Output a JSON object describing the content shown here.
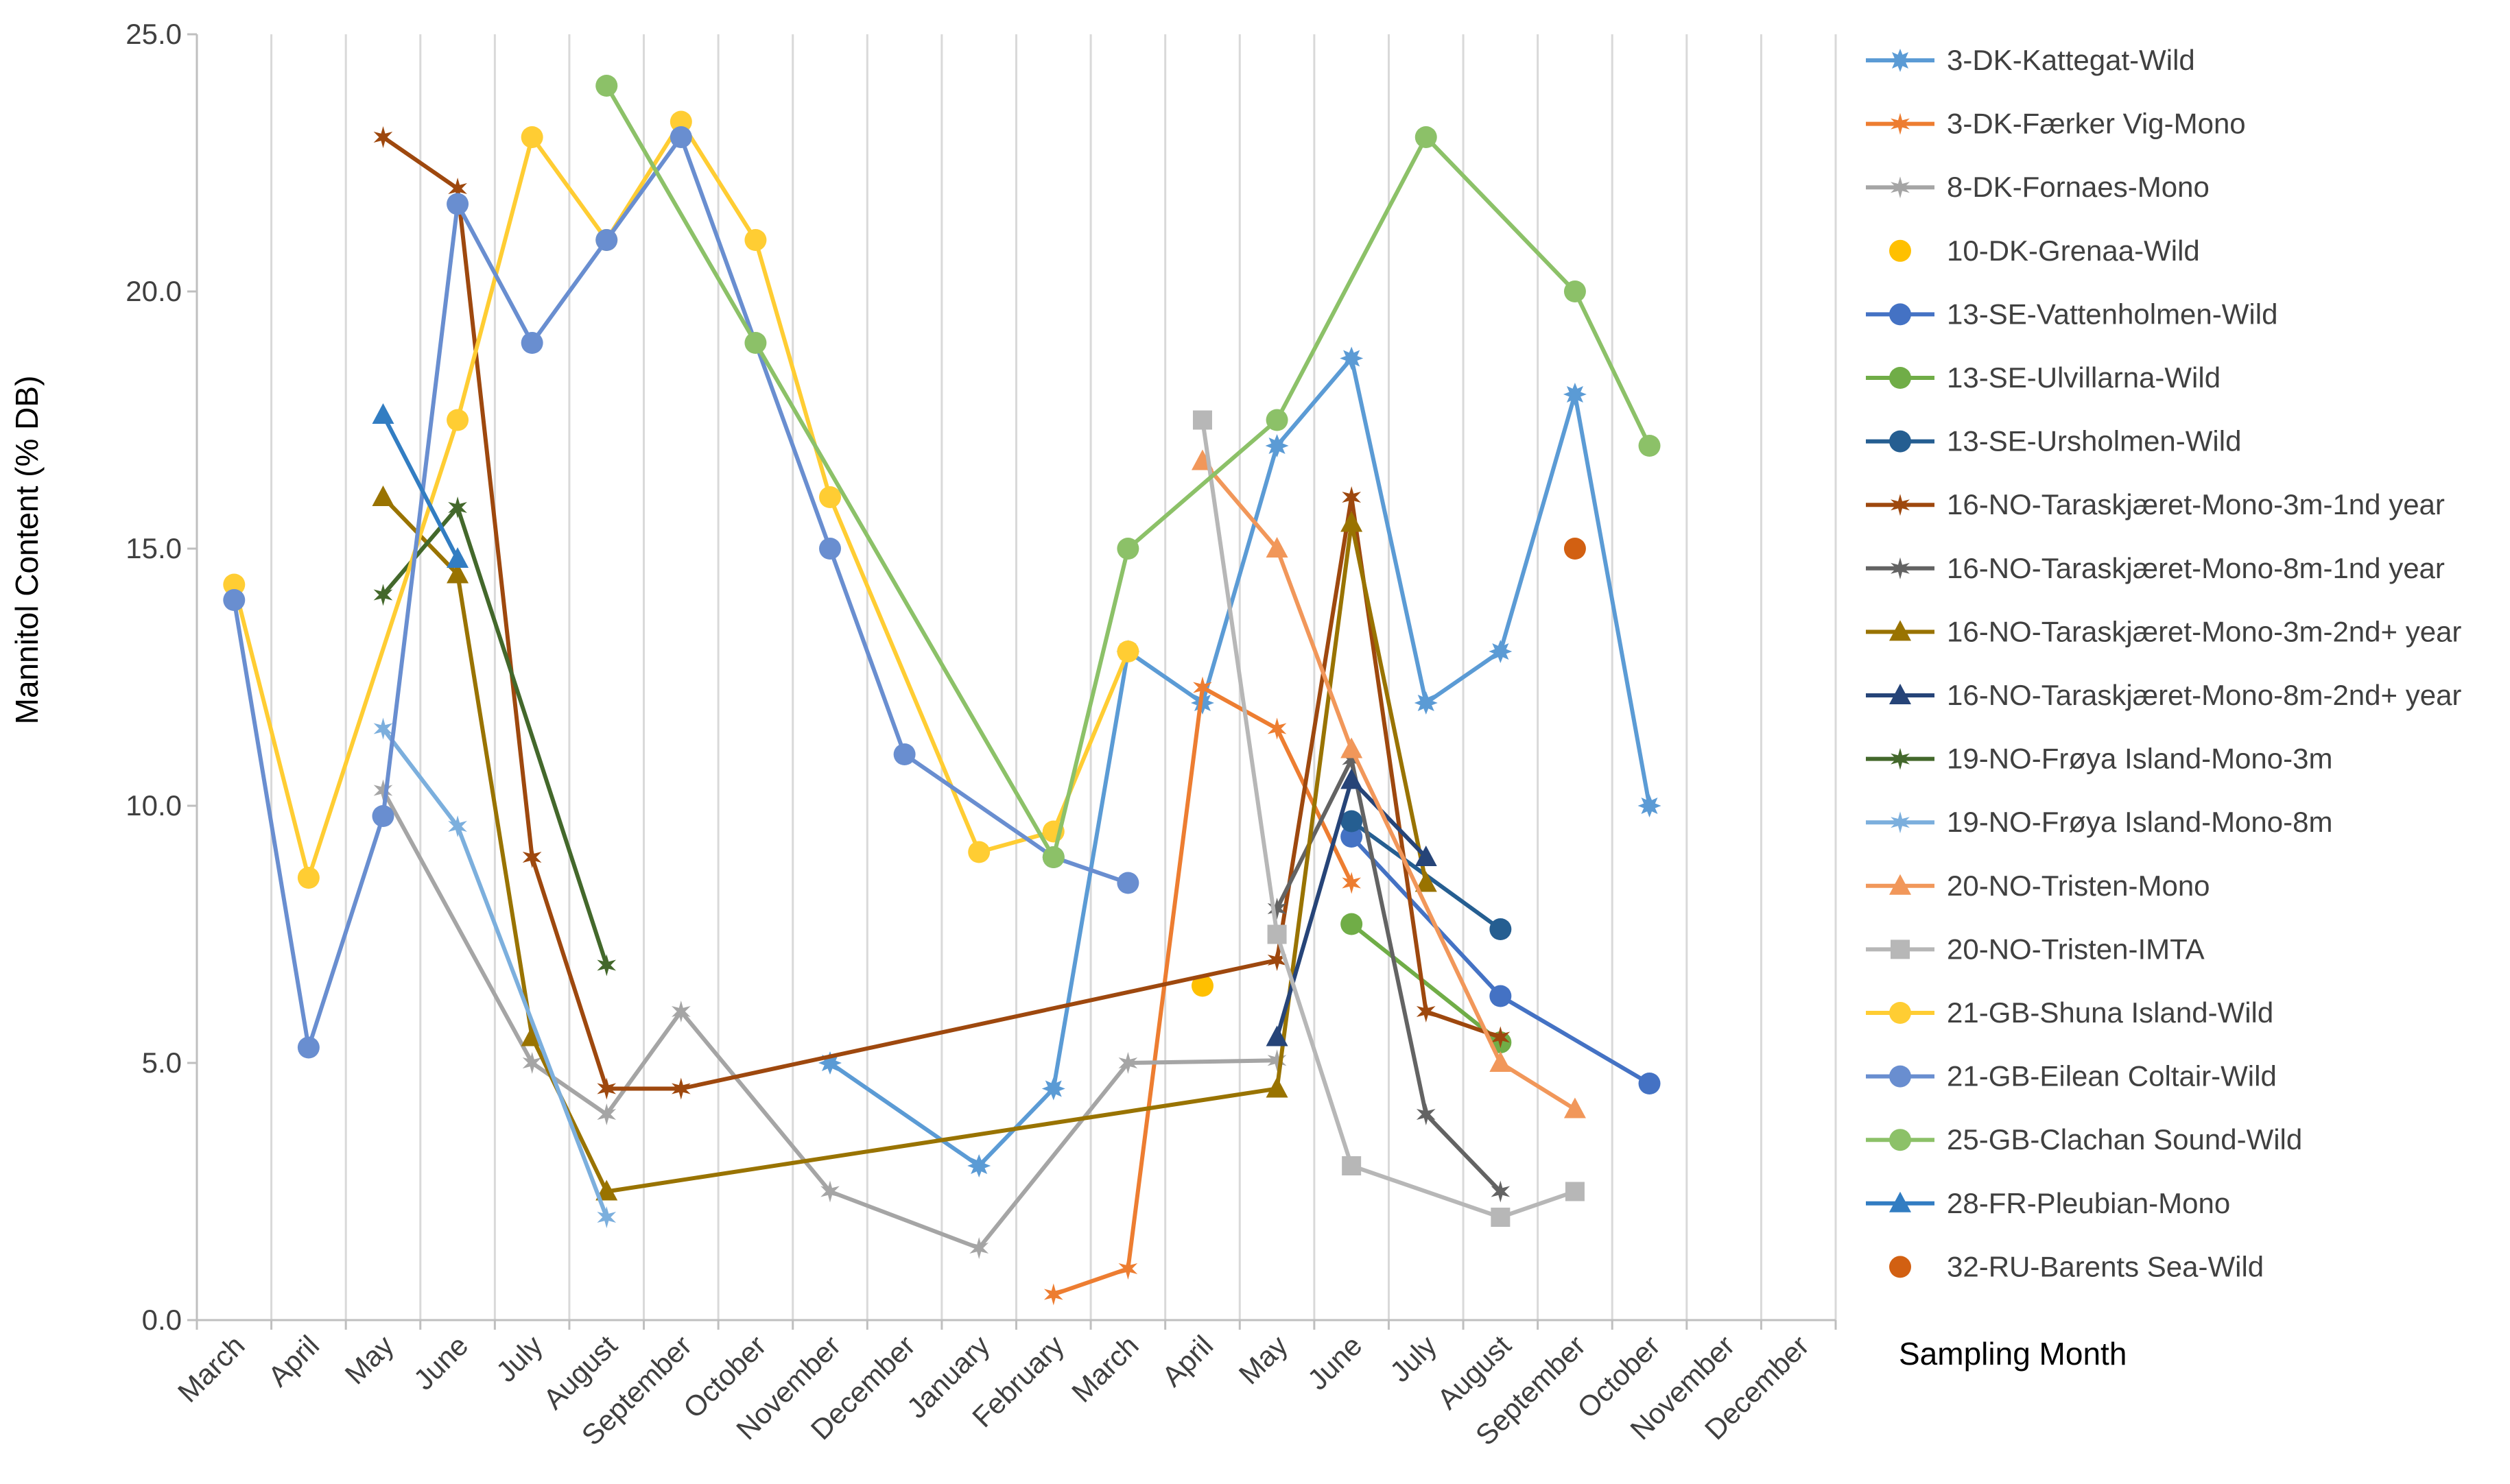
{
  "chart_data": {
    "type": "line",
    "title": "",
    "xlabel": "Sampling Month",
    "ylabel": "Mannitol Content (% DB)",
    "ylim": [
      0,
      25
    ],
    "yticks": [
      0,
      5,
      10,
      15,
      20,
      25
    ],
    "ytick_labels": [
      "0.0",
      "5.0",
      "10.0",
      "15.0",
      "20.0",
      "25.0"
    ],
    "grid": "vertical",
    "legend_position": "right",
    "categories": [
      "March",
      "April",
      "May",
      "June",
      "July",
      "August",
      "September",
      "October",
      "November",
      "December",
      "January",
      "February",
      "March",
      "April",
      "May",
      "June",
      "July",
      "August",
      "September",
      "October",
      "November",
      "December"
    ],
    "series": [
      {
        "name": "3-DK-Kattegat-Wild",
        "color": "#5B9BD5",
        "marker": "star8",
        "line": true,
        "points": [
          [
            8.5,
            5.0
          ],
          [
            10.5,
            3.0
          ],
          [
            11.5,
            4.5
          ],
          [
            12.5,
            13.0
          ],
          [
            13.5,
            12.0
          ],
          [
            14.5,
            17.0
          ],
          [
            15.5,
            18.7
          ],
          [
            16.5,
            12.0
          ],
          [
            17.5,
            13.0
          ],
          [
            18.5,
            18.0
          ],
          [
            19.5,
            10.0
          ]
        ]
      },
      {
        "name": "3-DK-Færker Vig-Mono",
        "color": "#ED7D31",
        "marker": "star6",
        "line": true,
        "points": [
          [
            11.5,
            0.5
          ],
          [
            12.5,
            1.0
          ],
          [
            13.5,
            12.3
          ],
          [
            14.5,
            11.5
          ],
          [
            15.5,
            8.5
          ]
        ]
      },
      {
        "name": "8-DK-Fornaes-Mono",
        "color": "#A5A5A5",
        "marker": "star6",
        "line": true,
        "points": [
          [
            2.5,
            10.3
          ],
          [
            4.5,
            5.0
          ],
          [
            5.5,
            4.0
          ],
          [
            6.5,
            6.0
          ],
          [
            8.5,
            2.5
          ],
          [
            10.5,
            1.4
          ],
          [
            12.5,
            5.0
          ],
          [
            14.5,
            5.05
          ]
        ]
      },
      {
        "name": "10-DK-Grenaa-Wild",
        "color": "#FFC000",
        "marker": "circle",
        "line": false,
        "points": [
          [
            13.5,
            6.5
          ]
        ]
      },
      {
        "name": "13-SE-Vattenholmen-Wild",
        "color": "#4472C4",
        "marker": "circle",
        "line": true,
        "points": [
          [
            15.5,
            9.4
          ],
          [
            17.5,
            6.3
          ],
          [
            19.5,
            4.6
          ]
        ]
      },
      {
        "name": "13-SE-Ulvillarna-Wild",
        "color": "#70AD47",
        "marker": "circle",
        "line": true,
        "points": [
          [
            15.5,
            7.7
          ],
          [
            17.5,
            5.4
          ]
        ]
      },
      {
        "name": "13-SE-Ursholmen-Wild",
        "color": "#255E91",
        "marker": "circle",
        "line": true,
        "points": [
          [
            15.5,
            9.7
          ],
          [
            17.5,
            7.6
          ]
        ]
      },
      {
        "name": "16-NO-Taraskjæret-Mono-3m-1nd year",
        "color": "#9E480E",
        "marker": "star6",
        "line": true,
        "points": [
          [
            2.5,
            23.0
          ],
          [
            3.5,
            22.0
          ],
          [
            4.5,
            9.0
          ],
          [
            5.5,
            4.5
          ],
          [
            6.5,
            4.5
          ],
          [
            14.5,
            7.0
          ],
          [
            15.5,
            16.0
          ],
          [
            16.5,
            6.0
          ],
          [
            17.5,
            5.5
          ]
        ]
      },
      {
        "name": "16-NO-Taraskjæret-Mono-8m-1nd year",
        "color": "#636363",
        "marker": "star6",
        "line": true,
        "points": [
          [
            14.5,
            8.0
          ],
          [
            15.5,
            10.9
          ],
          [
            16.5,
            4.0
          ],
          [
            17.5,
            2.5
          ]
        ]
      },
      {
        "name": "16-NO-Taraskjæret-Mono-3m-2nd+ year",
        "color": "#997300",
        "marker": "triangle",
        "line": true,
        "points": [
          [
            2.5,
            16.0
          ],
          [
            3.5,
            14.5
          ],
          [
            4.5,
            5.5
          ],
          [
            5.5,
            2.5
          ],
          [
            14.5,
            4.5
          ],
          [
            15.5,
            15.5
          ],
          [
            16.5,
            8.5
          ]
        ]
      },
      {
        "name": "16-NO-Taraskjæret-Mono-8m-2nd+ year",
        "color": "#264478",
        "marker": "triangle",
        "line": true,
        "points": [
          [
            14.5,
            5.5
          ],
          [
            15.5,
            10.5
          ],
          [
            16.5,
            9.0
          ]
        ]
      },
      {
        "name": "19-NO-Frøya Island-Mono-3m",
        "color": "#43682B",
        "marker": "star6",
        "line": true,
        "points": [
          [
            2.5,
            14.1
          ],
          [
            3.5,
            15.8
          ],
          [
            5.5,
            6.9
          ]
        ]
      },
      {
        "name": "19-NO-Frøya Island-Mono-8m",
        "color": "#7CAFDD",
        "marker": "star6",
        "line": true,
        "points": [
          [
            2.5,
            11.5
          ],
          [
            3.5,
            9.6
          ],
          [
            5.5,
            2.0
          ]
        ]
      },
      {
        "name": "20-NO-Tristen-Mono",
        "color": "#F1975A",
        "marker": "triangle",
        "line": true,
        "points": [
          [
            13.5,
            16.7
          ],
          [
            14.5,
            15.0
          ],
          [
            15.5,
            11.1
          ],
          [
            17.5,
            5.0
          ],
          [
            18.5,
            4.1
          ]
        ]
      },
      {
        "name": "20-NO-Tristen-IMTA",
        "color": "#B7B7B7",
        "marker": "square",
        "line": true,
        "points": [
          [
            13.5,
            17.5
          ],
          [
            14.5,
            7.5
          ],
          [
            15.5,
            3.0
          ],
          [
            17.5,
            2.0
          ],
          [
            18.5,
            2.5
          ]
        ]
      },
      {
        "name": "21-GB-Shuna Island-Wild",
        "color": "#FFCD33",
        "marker": "circle",
        "line": true,
        "points": [
          [
            0.5,
            14.3
          ],
          [
            1.5,
            8.6
          ],
          [
            3.5,
            17.5
          ],
          [
            4.5,
            23.0
          ],
          [
            5.5,
            21.0
          ],
          [
            6.5,
            23.3
          ],
          [
            7.5,
            21.0
          ],
          [
            8.5,
            16.0
          ],
          [
            10.5,
            9.1
          ],
          [
            11.5,
            9.5
          ],
          [
            12.5,
            13.0
          ]
        ]
      },
      {
        "name": "21-GB-Eilean Coltair-Wild",
        "color": "#698ED0",
        "marker": "circle",
        "line": true,
        "points": [
          [
            0.5,
            14.0
          ],
          [
            1.5,
            5.3
          ],
          [
            2.5,
            9.8
          ],
          [
            3.5,
            21.7
          ],
          [
            4.5,
            19.0
          ],
          [
            5.5,
            21.0
          ],
          [
            6.5,
            23.0
          ],
          [
            8.5,
            15.0
          ],
          [
            9.5,
            11.0
          ],
          [
            11.5,
            9.0
          ],
          [
            12.5,
            8.5
          ]
        ]
      },
      {
        "name": "25-GB-Clachan Sound-Wild",
        "color": "#8CC168",
        "marker": "circle",
        "line": true,
        "points": [
          [
            5.5,
            24.0
          ],
          [
            7.5,
            19.0
          ],
          [
            11.5,
            9.0
          ],
          [
            12.5,
            15.0
          ],
          [
            14.5,
            17.5
          ],
          [
            16.5,
            23.0
          ],
          [
            18.5,
            20.0
          ],
          [
            19.5,
            17.0
          ]
        ]
      },
      {
        "name": "28-FR-Pleubian-Mono",
        "color": "#327DC2",
        "marker": "triangle",
        "line": true,
        "points": [
          [
            2.5,
            17.6
          ],
          [
            3.5,
            14.8
          ]
        ]
      },
      {
        "name": "32-RU-Barents Sea-Wild",
        "color": "#D26012",
        "marker": "circle",
        "line": false,
        "points": [
          [
            18.5,
            15.0
          ]
        ]
      }
    ]
  }
}
